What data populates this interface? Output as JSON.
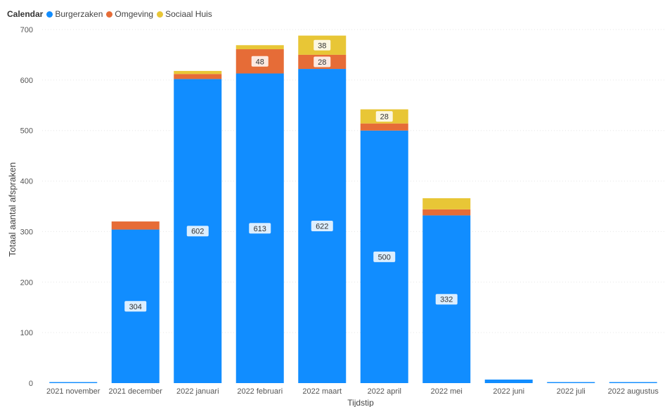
{
  "legend": {
    "title": "Calendar"
  },
  "chart_data": {
    "type": "bar",
    "stacked": true,
    "title": "",
    "xlabel": "Tijdstip",
    "ylabel": "Totaal aantal afspraken",
    "ylim": [
      0,
      700
    ],
    "yticks": [
      0,
      100,
      200,
      300,
      400,
      500,
      600,
      700
    ],
    "grid": true,
    "legend_position": "top-left",
    "categories": [
      "2021 november",
      "2021 december",
      "2022 januari",
      "2022 februari",
      "2022 maart",
      "2022 april",
      "2022 mei",
      "2022 juni",
      "2022 juli",
      "2022 augustus"
    ],
    "series": [
      {
        "name": "Burgerzaken",
        "color": "#118DFF",
        "values": [
          2,
          304,
          602,
          613,
          622,
          500,
          332,
          7,
          2,
          2
        ],
        "labels": [
          "",
          "304",
          "602",
          "613",
          "622",
          "500",
          "332",
          "",
          "",
          ""
        ]
      },
      {
        "name": "Omgeving",
        "color": "#E66C37",
        "values": [
          0,
          16,
          10,
          48,
          28,
          14,
          12,
          0,
          0,
          0
        ],
        "labels": [
          "",
          "",
          "",
          "48",
          "28",
          "",
          "",
          "",
          "",
          ""
        ]
      },
      {
        "name": "Sociaal Huis",
        "color": "#E8C636",
        "values": [
          0,
          0,
          6,
          8,
          38,
          28,
          22,
          0,
          0,
          0
        ],
        "labels": [
          "",
          "",
          "",
          "",
          "38",
          "28",
          "",
          "",
          "",
          ""
        ]
      }
    ]
  }
}
